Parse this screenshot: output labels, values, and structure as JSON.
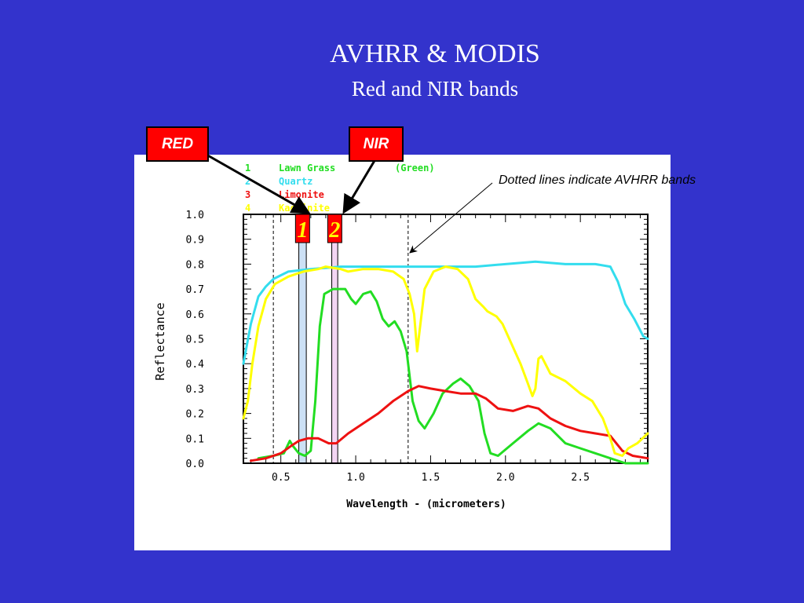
{
  "slide": {
    "title": "AVHRR & MODIS",
    "subtitle": "Red and NIR bands",
    "red_tag": "RED",
    "nir_tag": "NIR",
    "note": "Dotted lines indicate AVHRR bands"
  },
  "colors": {
    "background": "#3333cc",
    "tag": "#ff0000",
    "band1_fill": "#cce0f5",
    "band2_fill": "#f3d5f3",
    "band_label": "#ff0000",
    "band_label_text": "#ffff00"
  },
  "chart_data": {
    "type": "line",
    "xlabel": "Wavelength - (micrometers)",
    "ylabel": "Reflectance",
    "xlim": [
      0.25,
      2.95
    ],
    "ylim": [
      0.0,
      1.0
    ],
    "xticks": [
      "0.5",
      "1.0",
      "1.5",
      "2.0",
      "2.5"
    ],
    "yticks": [
      "0.0",
      "0.1",
      "0.2",
      "0.3",
      "0.4",
      "0.5",
      "0.6",
      "0.7",
      "0.8",
      "0.9",
      "1.0"
    ],
    "legend": [
      {
        "num": "1",
        "name": "Lawn Grass",
        "extra": "(Green)",
        "color": "#22dd22"
      },
      {
        "num": "2",
        "name": "Quartz",
        "extra": "",
        "color": "#33ddee"
      },
      {
        "num": "3",
        "name": "Limonite",
        "extra": "",
        "color": "#ee1111"
      },
      {
        "num": "4",
        "name": "Kaolinite",
        "extra": "",
        "color": "#ffff00"
      }
    ],
    "modis_bands": [
      {
        "label": "1",
        "range": [
          0.62,
          0.67
        ]
      },
      {
        "label": "2",
        "range": [
          0.84,
          0.88
        ]
      }
    ],
    "avhrr_band_edges": [
      0.45,
      1.35
    ],
    "series": [
      {
        "name": "Lawn Grass",
        "color": "#22dd22",
        "points": [
          [
            0.35,
            0.02
          ],
          [
            0.45,
            0.03
          ],
          [
            0.52,
            0.04
          ],
          [
            0.56,
            0.09
          ],
          [
            0.58,
            0.07
          ],
          [
            0.62,
            0.04
          ],
          [
            0.66,
            0.03
          ],
          [
            0.7,
            0.05
          ],
          [
            0.73,
            0.25
          ],
          [
            0.76,
            0.55
          ],
          [
            0.79,
            0.68
          ],
          [
            0.85,
            0.7
          ],
          [
            0.93,
            0.7
          ],
          [
            0.97,
            0.66
          ],
          [
            1.0,
            0.64
          ],
          [
            1.05,
            0.68
          ],
          [
            1.1,
            0.69
          ],
          [
            1.14,
            0.65
          ],
          [
            1.18,
            0.58
          ],
          [
            1.22,
            0.55
          ],
          [
            1.26,
            0.57
          ],
          [
            1.3,
            0.53
          ],
          [
            1.34,
            0.45
          ],
          [
            1.38,
            0.25
          ],
          [
            1.42,
            0.17
          ],
          [
            1.46,
            0.14
          ],
          [
            1.52,
            0.2
          ],
          [
            1.58,
            0.28
          ],
          [
            1.65,
            0.32
          ],
          [
            1.7,
            0.34
          ],
          [
            1.76,
            0.31
          ],
          [
            1.82,
            0.25
          ],
          [
            1.86,
            0.12
          ],
          [
            1.9,
            0.04
          ],
          [
            1.95,
            0.03
          ],
          [
            2.05,
            0.08
          ],
          [
            2.15,
            0.13
          ],
          [
            2.22,
            0.16
          ],
          [
            2.3,
            0.14
          ],
          [
            2.4,
            0.08
          ],
          [
            2.5,
            0.06
          ],
          [
            2.6,
            0.04
          ],
          [
            2.7,
            0.02
          ],
          [
            2.8,
            0.0
          ],
          [
            2.95,
            0.0
          ]
        ]
      },
      {
        "name": "Quartz",
        "color": "#33ddee",
        "points": [
          [
            0.25,
            0.4
          ],
          [
            0.3,
            0.56
          ],
          [
            0.35,
            0.67
          ],
          [
            0.4,
            0.71
          ],
          [
            0.45,
            0.74
          ],
          [
            0.55,
            0.77
          ],
          [
            0.7,
            0.78
          ],
          [
            0.9,
            0.79
          ],
          [
            1.2,
            0.79
          ],
          [
            1.5,
            0.79
          ],
          [
            1.8,
            0.79
          ],
          [
            2.0,
            0.8
          ],
          [
            2.2,
            0.81
          ],
          [
            2.4,
            0.8
          ],
          [
            2.6,
            0.8
          ],
          [
            2.7,
            0.79
          ],
          [
            2.75,
            0.73
          ],
          [
            2.8,
            0.64
          ],
          [
            2.86,
            0.58
          ],
          [
            2.92,
            0.51
          ],
          [
            2.95,
            0.5
          ]
        ]
      },
      {
        "name": "Limonite",
        "color": "#ee1111",
        "points": [
          [
            0.3,
            0.01
          ],
          [
            0.4,
            0.02
          ],
          [
            0.5,
            0.04
          ],
          [
            0.57,
            0.07
          ],
          [
            0.62,
            0.09
          ],
          [
            0.68,
            0.1
          ],
          [
            0.75,
            0.1
          ],
          [
            0.82,
            0.08
          ],
          [
            0.87,
            0.08
          ],
          [
            0.95,
            0.12
          ],
          [
            1.05,
            0.16
          ],
          [
            1.15,
            0.2
          ],
          [
            1.25,
            0.25
          ],
          [
            1.35,
            0.29
          ],
          [
            1.42,
            0.31
          ],
          [
            1.5,
            0.3
          ],
          [
            1.6,
            0.29
          ],
          [
            1.7,
            0.28
          ],
          [
            1.8,
            0.28
          ],
          [
            1.87,
            0.26
          ],
          [
            1.95,
            0.22
          ],
          [
            2.05,
            0.21
          ],
          [
            2.15,
            0.23
          ],
          [
            2.22,
            0.22
          ],
          [
            2.3,
            0.18
          ],
          [
            2.4,
            0.15
          ],
          [
            2.5,
            0.13
          ],
          [
            2.6,
            0.12
          ],
          [
            2.7,
            0.11
          ],
          [
            2.78,
            0.05
          ],
          [
            2.85,
            0.03
          ],
          [
            2.95,
            0.02
          ]
        ]
      },
      {
        "name": "Kaolinite",
        "color": "#ffff00",
        "points": [
          [
            0.25,
            0.18
          ],
          [
            0.28,
            0.25
          ],
          [
            0.31,
            0.4
          ],
          [
            0.35,
            0.55
          ],
          [
            0.4,
            0.66
          ],
          [
            0.46,
            0.72
          ],
          [
            0.55,
            0.75
          ],
          [
            0.65,
            0.77
          ],
          [
            0.75,
            0.78
          ],
          [
            0.8,
            0.79
          ],
          [
            0.9,
            0.78
          ],
          [
            0.95,
            0.77
          ],
          [
            1.05,
            0.78
          ],
          [
            1.15,
            0.78
          ],
          [
            1.25,
            0.77
          ],
          [
            1.32,
            0.74
          ],
          [
            1.36,
            0.68
          ],
          [
            1.39,
            0.6
          ],
          [
            1.41,
            0.45
          ],
          [
            1.43,
            0.55
          ],
          [
            1.46,
            0.7
          ],
          [
            1.52,
            0.77
          ],
          [
            1.6,
            0.79
          ],
          [
            1.68,
            0.78
          ],
          [
            1.75,
            0.74
          ],
          [
            1.8,
            0.66
          ],
          [
            1.85,
            0.63
          ],
          [
            1.88,
            0.61
          ],
          [
            1.94,
            0.59
          ],
          [
            1.98,
            0.56
          ],
          [
            2.04,
            0.48
          ],
          [
            2.1,
            0.4
          ],
          [
            2.15,
            0.32
          ],
          [
            2.18,
            0.27
          ],
          [
            2.2,
            0.3
          ],
          [
            2.22,
            0.42
          ],
          [
            2.24,
            0.43
          ],
          [
            2.3,
            0.36
          ],
          [
            2.4,
            0.33
          ],
          [
            2.5,
            0.28
          ],
          [
            2.58,
            0.25
          ],
          [
            2.65,
            0.18
          ],
          [
            2.7,
            0.1
          ],
          [
            2.73,
            0.04
          ],
          [
            2.78,
            0.03
          ],
          [
            2.82,
            0.06
          ],
          [
            2.88,
            0.08
          ],
          [
            2.95,
            0.12
          ]
        ]
      }
    ]
  }
}
